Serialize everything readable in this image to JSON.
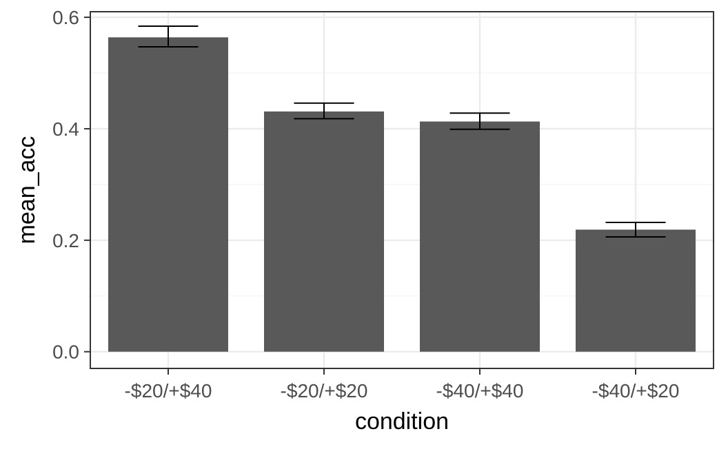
{
  "chart_data": {
    "type": "bar",
    "xlabel": "condition",
    "ylabel": "mean_acc",
    "categories": [
      "-$20/+$40",
      "-$20/+$20",
      "-$40/+$40",
      "-$40/+$20"
    ],
    "values": [
      0.564,
      0.431,
      0.413,
      0.219
    ],
    "error_lower": [
      0.547,
      0.418,
      0.399,
      0.206
    ],
    "error_upper": [
      0.584,
      0.446,
      0.428,
      0.232
    ],
    "ylim": [
      -0.03,
      0.61
    ],
    "yticks": [
      0.0,
      0.2,
      0.4,
      0.6
    ],
    "ytick_labels": [
      "0.0",
      "0.2",
      "0.4",
      "0.6"
    ],
    "grid": true,
    "legend": "none",
    "colors": {
      "bar": "#595959",
      "error_bar": "#000000",
      "grid_major": "#ebebeb",
      "grid_minor": "#f4f4f4",
      "panel_border": "#333333",
      "tick_label": "#4d4d4d"
    }
  }
}
